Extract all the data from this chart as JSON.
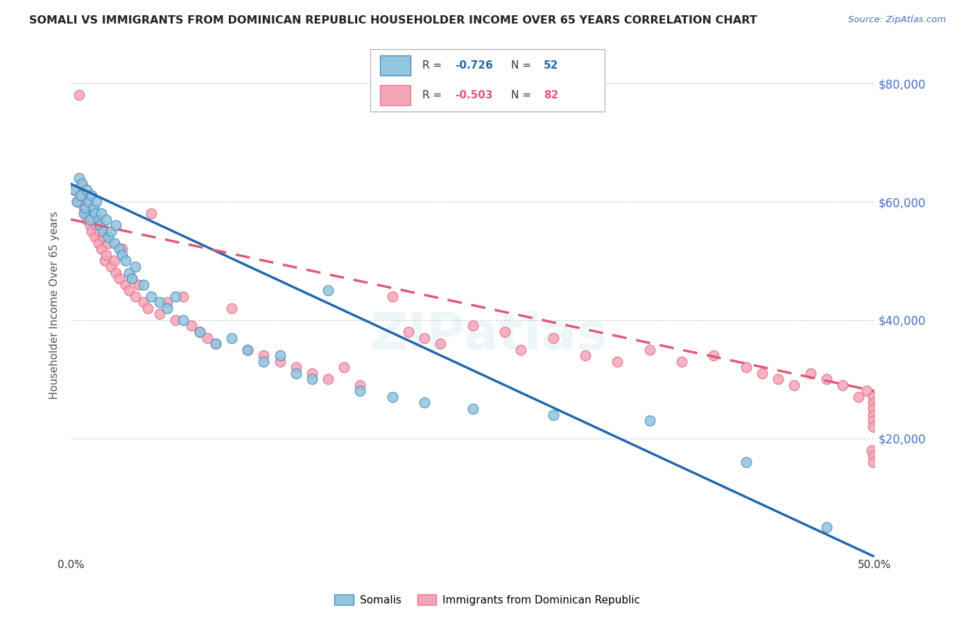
{
  "title": "SOMALI VS IMMIGRANTS FROM DOMINICAN REPUBLIC HOUSEHOLDER INCOME OVER 65 YEARS CORRELATION CHART",
  "source": "Source: ZipAtlas.com",
  "ylabel": "Householder Income Over 65 years",
  "x_min": 0.0,
  "x_max": 0.5,
  "y_min": 0,
  "y_max": 85000,
  "y_ticks": [
    0,
    20000,
    40000,
    60000,
    80000
  ],
  "y_tick_labels": [
    "",
    "$20,000",
    "$40,000",
    "$60,000",
    "$80,000"
  ],
  "somali_R": "-0.726",
  "somali_N": "52",
  "dr_R": "-0.503",
  "dr_N": "82",
  "somali_color": "#92c5de",
  "dr_color": "#f4a6b8",
  "somali_edge_color": "#4a90c4",
  "dr_edge_color": "#e8708a",
  "somali_line_color": "#2166ac",
  "dr_line_color": "#e05878",
  "background_color": "#ffffff",
  "grid_color": "#cccccc",
  "somali_line_y0": 63000,
  "somali_line_y1": 0,
  "dr_line_y0": 57000,
  "dr_line_y1": 28000,
  "somali_x": [
    0.002,
    0.004,
    0.005,
    0.006,
    0.007,
    0.008,
    0.009,
    0.01,
    0.011,
    0.012,
    0.013,
    0.014,
    0.015,
    0.016,
    0.017,
    0.018,
    0.019,
    0.02,
    0.022,
    0.023,
    0.025,
    0.027,
    0.028,
    0.03,
    0.032,
    0.034,
    0.036,
    0.038,
    0.04,
    0.045,
    0.05,
    0.055,
    0.06,
    0.065,
    0.07,
    0.08,
    0.09,
    0.1,
    0.11,
    0.12,
    0.13,
    0.14,
    0.15,
    0.16,
    0.18,
    0.2,
    0.22,
    0.25,
    0.3,
    0.36,
    0.42,
    0.47
  ],
  "somali_y": [
    62000,
    60000,
    64000,
    61000,
    63000,
    58000,
    59000,
    62000,
    60000,
    57000,
    61000,
    59000,
    58000,
    60000,
    57000,
    56000,
    58000,
    55000,
    57000,
    54000,
    55000,
    53000,
    56000,
    52000,
    51000,
    50000,
    48000,
    47000,
    49000,
    46000,
    44000,
    43000,
    42000,
    44000,
    40000,
    38000,
    36000,
    37000,
    35000,
    33000,
    34000,
    31000,
    30000,
    45000,
    28000,
    27000,
    26000,
    25000,
    24000,
    23000,
    16000,
    5000
  ],
  "dr_x": [
    0.002,
    0.004,
    0.005,
    0.006,
    0.007,
    0.008,
    0.009,
    0.01,
    0.011,
    0.012,
    0.013,
    0.014,
    0.015,
    0.016,
    0.017,
    0.018,
    0.019,
    0.02,
    0.021,
    0.022,
    0.023,
    0.025,
    0.027,
    0.028,
    0.03,
    0.032,
    0.034,
    0.036,
    0.038,
    0.04,
    0.042,
    0.045,
    0.048,
    0.05,
    0.055,
    0.06,
    0.065,
    0.07,
    0.075,
    0.08,
    0.085,
    0.09,
    0.1,
    0.11,
    0.12,
    0.13,
    0.14,
    0.15,
    0.16,
    0.17,
    0.18,
    0.2,
    0.21,
    0.22,
    0.23,
    0.25,
    0.27,
    0.28,
    0.3,
    0.32,
    0.34,
    0.36,
    0.38,
    0.4,
    0.42,
    0.43,
    0.44,
    0.45,
    0.46,
    0.47,
    0.48,
    0.49,
    0.495,
    0.498,
    0.499,
    0.499,
    0.499,
    0.499,
    0.499,
    0.499,
    0.499,
    0.499
  ],
  "dr_y": [
    62000,
    60000,
    78000,
    61000,
    63000,
    59000,
    58000,
    57000,
    60000,
    56000,
    55000,
    57000,
    54000,
    56000,
    53000,
    55000,
    52000,
    54000,
    50000,
    51000,
    53000,
    49000,
    50000,
    48000,
    47000,
    52000,
    46000,
    45000,
    47000,
    44000,
    46000,
    43000,
    42000,
    58000,
    41000,
    43000,
    40000,
    44000,
    39000,
    38000,
    37000,
    36000,
    42000,
    35000,
    34000,
    33000,
    32000,
    31000,
    30000,
    32000,
    29000,
    44000,
    38000,
    37000,
    36000,
    39000,
    38000,
    35000,
    37000,
    34000,
    33000,
    35000,
    33000,
    34000,
    32000,
    31000,
    30000,
    29000,
    31000,
    30000,
    29000,
    27000,
    28000,
    18000,
    27000,
    26000,
    25000,
    24000,
    23000,
    22000,
    17000,
    16000
  ]
}
